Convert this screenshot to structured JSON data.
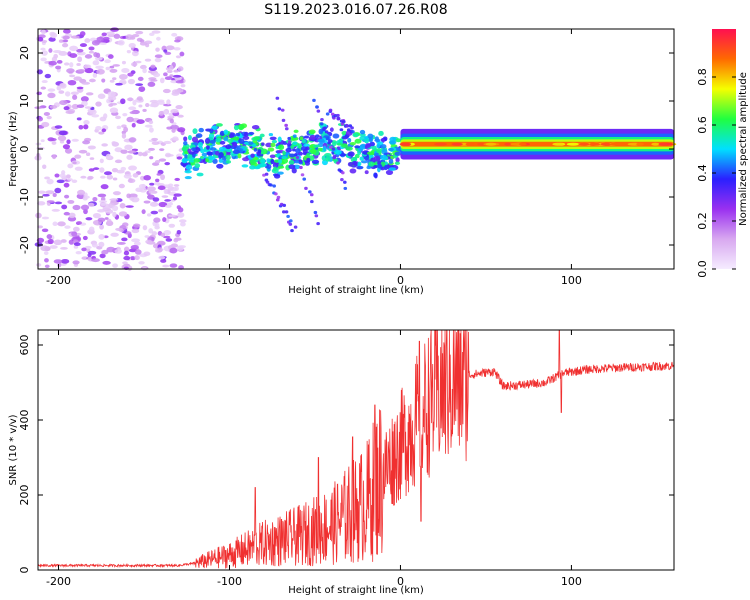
{
  "title": "S119.2023.016.07.26.R08",
  "chart_data": [
    {
      "type": "heatmap",
      "xlabel": "Height of straight line (km)",
      "ylabel": "Frequency (Hz)",
      "xlim": [
        -212,
        160
      ],
      "ylim": [
        -25,
        25
      ],
      "xticks": [
        -200,
        -100,
        0,
        100
      ],
      "xtick_labels": [
        "-200",
        "-100",
        "0",
        "100"
      ],
      "yticks": [
        -20,
        -10,
        0,
        10,
        20
      ],
      "ytick_labels": [
        "-20",
        "-10",
        "0",
        "10",
        "20"
      ],
      "colorbar": {
        "label": "Normalized spectral amplitude",
        "range": [
          0,
          1
        ],
        "ticks": [
          0.0,
          0.2,
          0.4,
          0.6,
          0.8
        ],
        "tick_labels": [
          "0.0",
          "0.2",
          "0.4",
          "0.6",
          "0.8"
        ],
        "colors": [
          "#f5ecff",
          "#d8a8f0",
          "#9a30f0",
          "#2a20ff",
          "#00e0ff",
          "#20ff40",
          "#f5ff00",
          "#ff6a00",
          "#ff1050"
        ]
      },
      "regions": [
        {
          "name": "noise",
          "x_range": [
            -212,
            -127
          ],
          "y_range": [
            -25,
            25
          ],
          "amplitude": [
            0.05,
            0.3
          ]
        },
        {
          "name": "signal-band",
          "x_range": [
            -127,
            0
          ],
          "y_range": [
            -5,
            5
          ],
          "amplitude": [
            0.3,
            0.65
          ]
        },
        {
          "name": "tone",
          "x_range": [
            0,
            160
          ],
          "y_range": [
            0,
            2
          ],
          "amplitude": [
            0.5,
            0.95
          ]
        }
      ]
    },
    {
      "type": "line",
      "xlabel": "Height of straight line (km)",
      "ylabel": "SNR (10 * v/v)",
      "xlim": [
        -212,
        160
      ],
      "ylim": [
        0,
        640
      ],
      "xticks": [
        -200,
        -100,
        0,
        100
      ],
      "xtick_labels": [
        "-200",
        "-100",
        "0",
        "100"
      ],
      "yticks": [
        0,
        200,
        400,
        600
      ],
      "ytick_labels": [
        "0",
        "200",
        "400",
        "600"
      ],
      "color": "#f03030",
      "envelope": {
        "x": [
          -212,
          -130,
          -120,
          -100,
          -80,
          -60,
          -40,
          -20,
          -10,
          0,
          10,
          20,
          30,
          40,
          55,
          60,
          75,
          85,
          95,
          110,
          130,
          160
        ],
        "y": [
          12,
          12,
          18,
          40,
          70,
          90,
          120,
          180,
          260,
          330,
          400,
          470,
          505,
          520,
          530,
          490,
          495,
          500,
          525,
          535,
          540,
          545
        ]
      },
      "spikes": [
        {
          "x": -85,
          "y": 220
        },
        {
          "x": -48,
          "y": 300
        },
        {
          "x": -28,
          "y": 355
        },
        {
          "x": -15,
          "y": 440
        },
        {
          "x": 11,
          "y": 610
        },
        {
          "x": 12,
          "y": 130
        },
        {
          "x": 93,
          "y": 640
        },
        {
          "x": 94,
          "y": 420
        }
      ]
    }
  ]
}
